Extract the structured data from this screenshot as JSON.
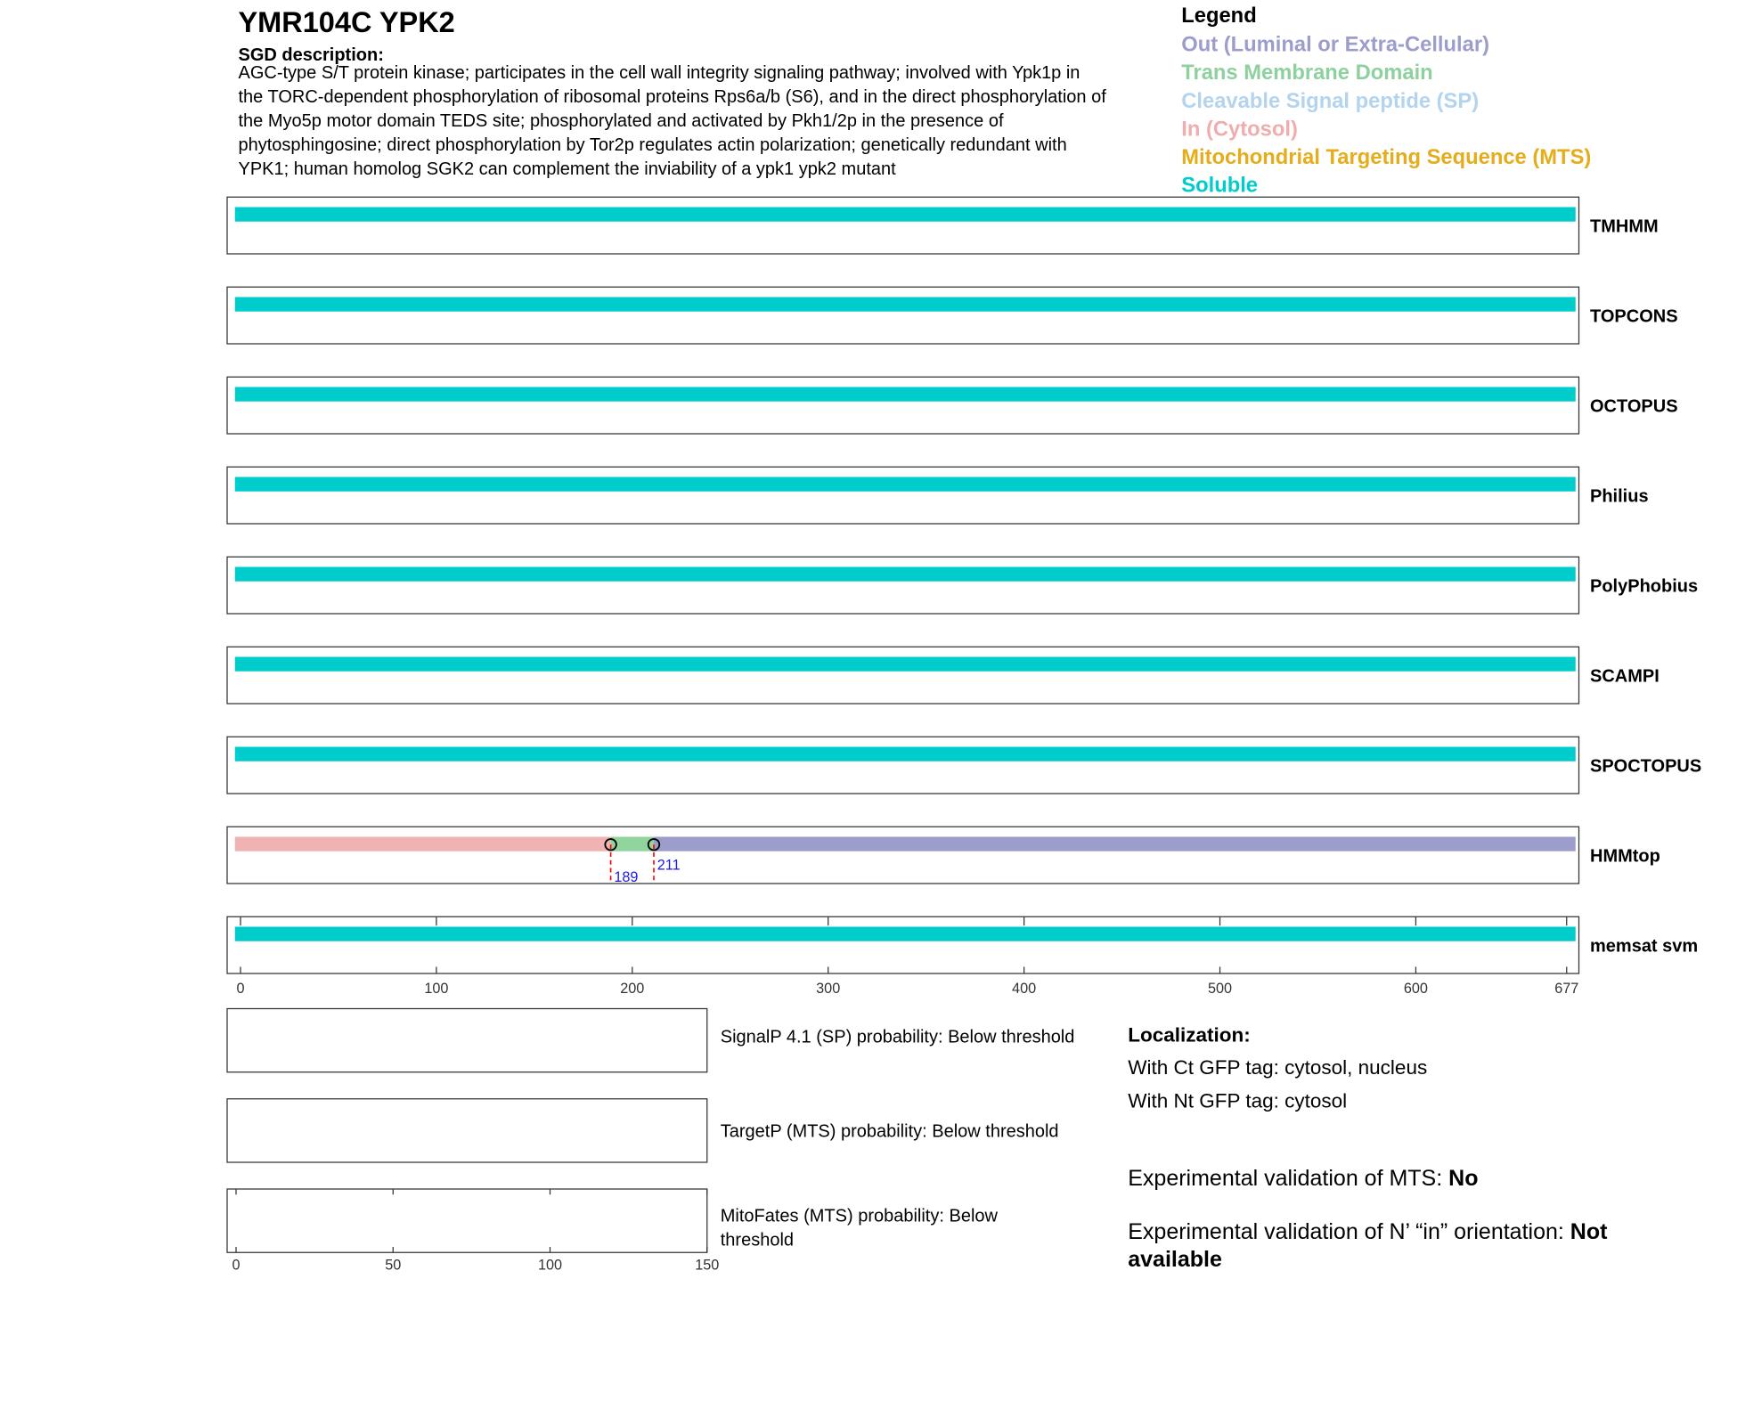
{
  "title": "YMR104C  YPK2",
  "description": {
    "heading": "SGD description:",
    "lines": [
      "AGC-type S/T protein kinase; participates in the cell wall integrity signaling pathway; involved with Ypk1p in",
      "the TORC-dependent phosphorylation of ribosomal proteins Rps6a/b (S6), and in the direct phosphorylation of",
      "the Myo5p motor domain TEDS site; phosphorylated and activated by Pkh1/2p in the presence of",
      "phytosphingosine; direct phosphorylation by Tor2p regulates actin polarization; genetically redundant with",
      "YPK1; human homolog SGK2 can complement the inviability of a ypk1 ypk2 mutant"
    ]
  },
  "legend": {
    "title": "Legend",
    "items": [
      {
        "label": "Out (Luminal or Extra-Cellular)",
        "color": "#9d9dcc"
      },
      {
        "label": "Trans Membrane Domain",
        "color": "#8fd19e"
      },
      {
        "label": "Cleavable Signal peptide (SP)",
        "color": "#b3d4ef"
      },
      {
        "label": "In (Cytosol)",
        "color": "#efadad"
      },
      {
        "label": "Mitochondrial Targeting Sequence (MTS)",
        "color": "#e5ad1c"
      },
      {
        "label": "Soluble",
        "color": "#00cccc"
      }
    ]
  },
  "tracks": [
    {
      "name": "TMHMM",
      "boundaries": [
        0,
        677
      ],
      "colors": [
        "#00cccc"
      ]
    },
    {
      "name": "TOPCONS",
      "boundaries": [
        0,
        677
      ],
      "colors": [
        "#00cccc"
      ]
    },
    {
      "name": "OCTOPUS",
      "boundaries": [
        0,
        677
      ],
      "colors": [
        "#00cccc"
      ]
    },
    {
      "name": "Philius",
      "boundaries": [
        0,
        677
      ],
      "colors": [
        "#00cccc"
      ]
    },
    {
      "name": "PolyPhobius",
      "boundaries": [
        0,
        677
      ],
      "colors": [
        "#00cccc"
      ]
    },
    {
      "name": "SCAMPI",
      "boundaries": [
        0,
        677
      ],
      "colors": [
        "#00cccc"
      ]
    },
    {
      "name": "SPOCTOPUS",
      "boundaries": [
        0,
        677
      ],
      "colors": [
        "#00cccc"
      ]
    },
    {
      "name": "HMMtop",
      "boundaries": [
        0,
        189,
        211,
        677
      ],
      "colors": [
        "#efb3b3",
        "#92d49e",
        "#9d9dcc"
      ]
    },
    {
      "name": "memsat svm",
      "boundaries": [
        0,
        677
      ],
      "colors": [
        "#00cccc"
      ]
    }
  ],
  "xlim": [
    0,
    677
  ],
  "xticks": [
    0,
    100,
    200,
    300,
    400,
    500,
    600,
    677
  ],
  "probability": {
    "xlim": [
      0,
      150
    ],
    "xticks": [
      0,
      50,
      100,
      150
    ],
    "panels": [
      {
        "lines": [
          "SignalP 4.1 (SP) probability: Below threshold"
        ]
      },
      {
        "lines": [
          "TargetP (MTS) probability: Below threshold"
        ]
      },
      {
        "lines": [
          "MitoFates (MTS) probability: Below",
          "threshold"
        ]
      }
    ]
  },
  "localization": {
    "heading": "Localization:",
    "lines": [
      "With Ct GFP tag: cytosol, nucleus",
      "With Nt GFP tag: cytosol"
    ]
  },
  "validation": [
    {
      "label": "Experimental validation of MTS:",
      "value_lines": [
        "No"
      ]
    },
    {
      "label": "Experimental validation of N’ “in” orientation:",
      "value_lines": [
        "Not",
        "available"
      ]
    }
  ]
}
